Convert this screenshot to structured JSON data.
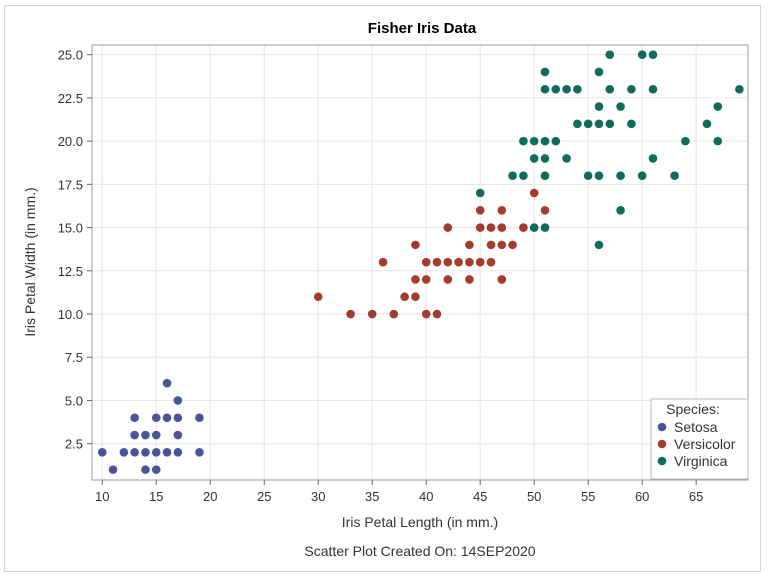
{
  "chart_data": {
    "type": "scatter",
    "title": "Fisher Iris Data",
    "xlabel": "Iris Petal Length (in mm.)",
    "ylabel": "Iris Petal Width (in mm.)",
    "footnote": "Scatter Plot Created On: 14SEP2020",
    "xlim": [
      9.05,
      69.8
    ],
    "ylim": [
      0.4,
      25.56
    ],
    "xticks": [
      "10",
      "15",
      "20",
      "25",
      "30",
      "35",
      "40",
      "45",
      "50",
      "55",
      "60",
      "65"
    ],
    "yticks": [
      "2.5",
      "5.0",
      "7.5",
      "10.0",
      "12.5",
      "15.0",
      "17.5",
      "20.0",
      "22.5",
      "25.0"
    ],
    "grid": true,
    "legend": {
      "title": "Species:",
      "position": "bottom-right inside"
    },
    "series": [
      {
        "name": "Setosa",
        "color": "#4a5598",
        "points": [
          [
            16,
            6
          ],
          [
            17,
            5
          ],
          [
            13,
            4
          ],
          [
            15,
            4
          ],
          [
            16,
            4
          ],
          [
            17,
            4
          ],
          [
            19,
            4
          ],
          [
            13,
            3
          ],
          [
            14,
            3
          ],
          [
            15,
            3
          ],
          [
            17,
            3
          ],
          [
            10,
            2
          ],
          [
            12,
            2
          ],
          [
            13,
            2
          ],
          [
            14,
            2
          ],
          [
            15,
            2
          ],
          [
            16,
            2
          ],
          [
            17,
            2
          ],
          [
            19,
            2
          ],
          [
            11,
            1
          ],
          [
            14,
            1
          ],
          [
            15,
            1
          ]
        ]
      },
      {
        "name": "Versicolor",
        "color": "#a33b2e",
        "points": [
          [
            50,
            17
          ],
          [
            45,
            16
          ],
          [
            47,
            16
          ],
          [
            51,
            16
          ],
          [
            42,
            15
          ],
          [
            45,
            15
          ],
          [
            46,
            15
          ],
          [
            47,
            15
          ],
          [
            49,
            15
          ],
          [
            39,
            14
          ],
          [
            44,
            14
          ],
          [
            46,
            14
          ],
          [
            47,
            14
          ],
          [
            48,
            14
          ],
          [
            36,
            13
          ],
          [
            40,
            13
          ],
          [
            41,
            13
          ],
          [
            42,
            13
          ],
          [
            43,
            13
          ],
          [
            44,
            13
          ],
          [
            45,
            13
          ],
          [
            46,
            13
          ],
          [
            39,
            12
          ],
          [
            40,
            12
          ],
          [
            42,
            12
          ],
          [
            44,
            12
          ],
          [
            47,
            12
          ],
          [
            30,
            11
          ],
          [
            38,
            11
          ],
          [
            39,
            11
          ],
          [
            33,
            10
          ],
          [
            35,
            10
          ],
          [
            37,
            10
          ],
          [
            40,
            10
          ],
          [
            41,
            10
          ]
        ]
      },
      {
        "name": "Virginica",
        "color": "#0f6b5c",
        "points": [
          [
            57,
            25
          ],
          [
            60,
            25
          ],
          [
            61,
            25
          ],
          [
            51,
            24
          ],
          [
            56,
            24
          ],
          [
            51,
            23
          ],
          [
            52,
            23
          ],
          [
            53,
            23
          ],
          [
            54,
            23
          ],
          [
            57,
            23
          ],
          [
            59,
            23
          ],
          [
            61,
            23
          ],
          [
            69,
            23
          ],
          [
            56,
            22
          ],
          [
            58,
            22
          ],
          [
            67,
            22
          ],
          [
            54,
            21
          ],
          [
            55,
            21
          ],
          [
            56,
            21
          ],
          [
            57,
            21
          ],
          [
            59,
            21
          ],
          [
            66,
            21
          ],
          [
            49,
            20
          ],
          [
            50,
            20
          ],
          [
            51,
            20
          ],
          [
            52,
            20
          ],
          [
            64,
            20
          ],
          [
            67,
            20
          ],
          [
            50,
            19
          ],
          [
            51,
            19
          ],
          [
            53,
            19
          ],
          [
            61,
            19
          ],
          [
            48,
            18
          ],
          [
            49,
            18
          ],
          [
            51,
            18
          ],
          [
            55,
            18
          ],
          [
            56,
            18
          ],
          [
            58,
            18
          ],
          [
            60,
            18
          ],
          [
            63,
            18
          ],
          [
            45,
            17
          ],
          [
            58,
            16
          ],
          [
            50,
            15
          ],
          [
            51,
            15
          ],
          [
            56,
            14
          ]
        ]
      }
    ]
  }
}
